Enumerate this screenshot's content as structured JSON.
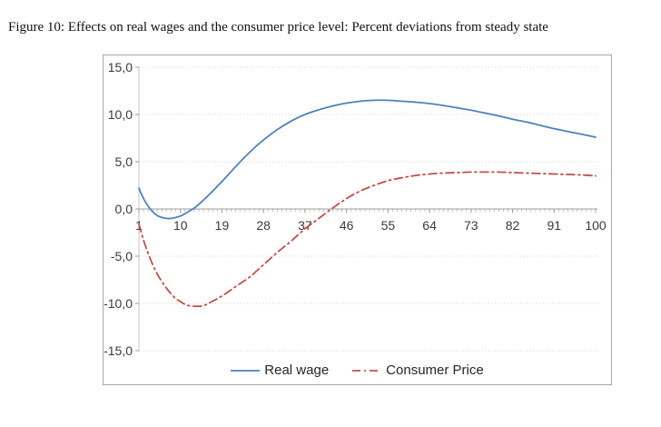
{
  "figure_title": "Figure 10: Effects on real wages and the consumer price level: Percent deviations from steady state",
  "colors": {
    "real_wage": "#4F81BD",
    "consumer_price": "#C0504D",
    "gridline": "#BFBFBF",
    "axis": "#9C9C9C",
    "tick_label": "#3A3A3A",
    "chart_border": "#A6A6A6",
    "background": "#FFFFFF"
  },
  "chart_data": {
    "type": "line",
    "title": "Figure 10: Effects on real wages and the consumer price level: Percent deviations from steady state",
    "xlabel": "",
    "ylabel": "",
    "xlim": [
      1,
      100
    ],
    "ylim": [
      -15,
      15
    ],
    "grid": "horizontal-dotted",
    "legend_position": "bottom-center",
    "decimal_separator": ",",
    "x_tick_labels": [
      "1",
      "10",
      "19",
      "28",
      "37",
      "46",
      "55",
      "64",
      "73",
      "82",
      "91",
      "100"
    ],
    "x_tick_values": [
      1,
      10,
      19,
      28,
      37,
      46,
      55,
      64,
      73,
      82,
      91,
      100
    ],
    "y_tick_labels": [
      "15,0",
      "10,0",
      "5,0",
      "0,0",
      "-5,0",
      "-10,0",
      "-15,0"
    ],
    "y_tick_values": [
      15,
      10,
      5,
      0,
      -5,
      -10,
      -15
    ],
    "minor_x_ticks_every": 1,
    "series": [
      {
        "name": "Real wage",
        "color": "#4F81BD",
        "line_style": "solid",
        "points": [
          [
            1,
            2.2
          ],
          [
            2,
            1.1
          ],
          [
            3,
            0.3
          ],
          [
            4,
            -0.3
          ],
          [
            5,
            -0.7
          ],
          [
            6,
            -0.9
          ],
          [
            7,
            -1.0
          ],
          [
            8,
            -1.0
          ],
          [
            9,
            -0.9
          ],
          [
            10,
            -0.75
          ],
          [
            11,
            -0.5
          ],
          [
            12,
            -0.2
          ],
          [
            13,
            0.1
          ],
          [
            14,
            0.5
          ],
          [
            16,
            1.4
          ],
          [
            19,
            2.9
          ],
          [
            22,
            4.5
          ],
          [
            25,
            6.0
          ],
          [
            28,
            7.3
          ],
          [
            31,
            8.4
          ],
          [
            34,
            9.3
          ],
          [
            37,
            10.0
          ],
          [
            40,
            10.5
          ],
          [
            43,
            10.9
          ],
          [
            46,
            11.2
          ],
          [
            49,
            11.4
          ],
          [
            52,
            11.5
          ],
          [
            55,
            11.5
          ],
          [
            58,
            11.4
          ],
          [
            61,
            11.3
          ],
          [
            64,
            11.15
          ],
          [
            67,
            10.95
          ],
          [
            70,
            10.7
          ],
          [
            73,
            10.45
          ],
          [
            76,
            10.15
          ],
          [
            79,
            9.85
          ],
          [
            82,
            9.5
          ],
          [
            85,
            9.2
          ],
          [
            88,
            8.85
          ],
          [
            91,
            8.5
          ],
          [
            94,
            8.2
          ],
          [
            97,
            7.9
          ],
          [
            100,
            7.6
          ]
        ]
      },
      {
        "name": "Consumer Price",
        "color": "#C0504D",
        "line_style": "dash-dot",
        "points": [
          [
            1,
            -1.6
          ],
          [
            2,
            -3.3
          ],
          [
            3,
            -4.7
          ],
          [
            4,
            -5.9
          ],
          [
            5,
            -6.9
          ],
          [
            6,
            -7.7
          ],
          [
            7,
            -8.4
          ],
          [
            8,
            -9.0
          ],
          [
            9,
            -9.5
          ],
          [
            10,
            -9.8
          ],
          [
            11,
            -10.1
          ],
          [
            12,
            -10.25
          ],
          [
            13,
            -10.3
          ],
          [
            14,
            -10.3
          ],
          [
            15,
            -10.25
          ],
          [
            16,
            -10.0
          ],
          [
            18,
            -9.5
          ],
          [
            20,
            -8.9
          ],
          [
            22,
            -8.2
          ],
          [
            25,
            -7.2
          ],
          [
            28,
            -5.9
          ],
          [
            31,
            -4.6
          ],
          [
            34,
            -3.4
          ],
          [
            37,
            -2.1
          ],
          [
            40,
            -1.0
          ],
          [
            43,
            0.1
          ],
          [
            46,
            1.1
          ],
          [
            49,
            1.9
          ],
          [
            52,
            2.5
          ],
          [
            55,
            3.0
          ],
          [
            58,
            3.3
          ],
          [
            61,
            3.55
          ],
          [
            64,
            3.7
          ],
          [
            67,
            3.8
          ],
          [
            70,
            3.85
          ],
          [
            73,
            3.9
          ],
          [
            76,
            3.9
          ],
          [
            79,
            3.9
          ],
          [
            82,
            3.85
          ],
          [
            85,
            3.8
          ],
          [
            88,
            3.75
          ],
          [
            91,
            3.7
          ],
          [
            94,
            3.65
          ],
          [
            97,
            3.6
          ],
          [
            100,
            3.5
          ]
        ]
      }
    ]
  }
}
